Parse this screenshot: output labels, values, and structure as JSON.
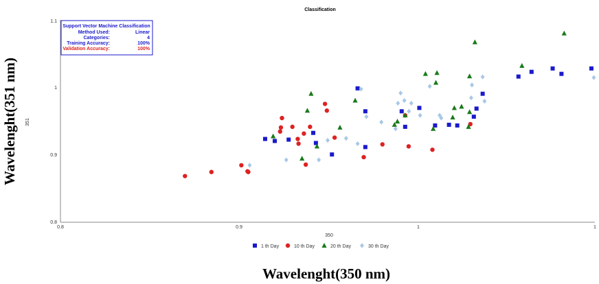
{
  "chart_data": {
    "type": "scatter",
    "title": "Classification",
    "xlabel": "350",
    "ylabel": "351",
    "outer_xlabel": "Wavelenght(350 nm)",
    "outer_ylabel": "Wavelenght(351 nm)",
    "xlim": [
      0.8,
      1.0
    ],
    "ylim": [
      0.8,
      1.1
    ],
    "x_ticks": [
      "0.8",
      "0.9",
      "1",
      "1"
    ],
    "y_ticks": [
      "0.8",
      "0.9",
      "1",
      "1.1"
    ],
    "grid": false,
    "legend_position": "bottom",
    "info_box": {
      "title": "Support Vector Machine Classification",
      "rows": [
        {
          "label": "Method Used:",
          "value": "Linear"
        },
        {
          "label": "Categories:",
          "value": "4"
        },
        {
          "label": "Training Accuracy:",
          "value": "100%"
        },
        {
          "label": "Validation Accuracy:",
          "value": "100%"
        }
      ]
    },
    "series": [
      {
        "name": "1 th Day",
        "marker": "square",
        "color": "#1a1acc",
        "points": [
          [
            0.8766,
            0.9235
          ],
          [
            0.8802,
            0.9205
          ],
          [
            0.8854,
            0.9225
          ],
          [
            0.8946,
            0.9325
          ],
          [
            0.8956,
            0.9175
          ],
          [
            0.9016,
            0.9005
          ],
          [
            0.9112,
            0.9985
          ],
          [
            0.9141,
            0.9645
          ],
          [
            0.9141,
            0.9115
          ],
          [
            0.9277,
            0.9645
          ],
          [
            0.929,
            0.9415
          ],
          [
            0.9343,
            0.9695
          ],
          [
            0.9402,
            0.9435
          ],
          [
            0.9454,
            0.9445
          ],
          [
            0.9485,
            0.9435
          ],
          [
            0.9547,
            0.9565
          ],
          [
            0.9557,
            0.9685
          ],
          [
            0.958,
            0.9905
          ],
          [
            0.9714,
            1.016
          ],
          [
            0.9763,
            1.023
          ],
          [
            0.9842,
            1.028
          ],
          [
            0.9875,
            1.02
          ],
          [
            0.9987,
            1.028
          ]
        ]
      },
      {
        "name": "10 th Day",
        "marker": "circle",
        "color": "#dd2222",
        "points": [
          [
            0.8466,
            0.8685
          ],
          [
            0.8565,
            0.8745
          ],
          [
            0.8677,
            0.8845
          ],
          [
            0.87,
            0.8755
          ],
          [
            0.8703,
            0.8745
          ],
          [
            0.8822,
            0.9345
          ],
          [
            0.8825,
            0.9405
          ],
          [
            0.8829,
            0.9545
          ],
          [
            0.8868,
            0.9415
          ],
          [
            0.8888,
            0.9235
          ],
          [
            0.8891,
            0.9165
          ],
          [
            0.8911,
            0.9315
          ],
          [
            0.8918,
            0.8855
          ],
          [
            0.8934,
            0.9415
          ],
          [
            0.899,
            0.9755
          ],
          [
            0.8997,
            0.9655
          ],
          [
            0.9026,
            0.9255
          ],
          [
            0.9135,
            0.8965
          ],
          [
            0.9205,
            0.9155
          ],
          [
            0.929,
            0.9585
          ],
          [
            0.9303,
            0.9125
          ],
          [
            0.9392,
            0.9075
          ],
          [
            0.9534,
            0.9455
          ]
        ]
      },
      {
        "name": "20 th Day",
        "marker": "triangle",
        "color": "#1a7a1a",
        "points": [
          [
            0.8796,
            0.9275
          ],
          [
            0.8904,
            0.8945
          ],
          [
            0.8924,
            0.9655
          ],
          [
            0.8938,
            0.9905
          ],
          [
            0.896,
            0.9125
          ],
          [
            0.9046,
            0.9405
          ],
          [
            0.9103,
            0.9805
          ],
          [
            0.925,
            0.9445
          ],
          [
            0.9261,
            0.9495
          ],
          [
            0.929,
            0.9585
          ],
          [
            0.9366,
            1.02
          ],
          [
            0.9395,
            0.9385
          ],
          [
            0.9405,
            1.007
          ],
          [
            0.9409,
            1.0215
          ],
          [
            0.9468,
            0.9555
          ],
          [
            0.9474,
            0.9695
          ],
          [
            0.9501,
            0.9715
          ],
          [
            0.9527,
            0.9415
          ],
          [
            0.9531,
            1.0165
          ],
          [
            0.9531,
            0.9635
          ],
          [
            0.9551,
            1.067
          ],
          [
            0.9727,
            1.032
          ],
          [
            0.9885,
            1.08
          ]
        ]
      },
      {
        "name": "30 th Day",
        "marker": "diamond",
        "color": "#a8c8e6",
        "points": [
          [
            0.8708,
            0.8845
          ],
          [
            0.8845,
            0.8925
          ],
          [
            0.8967,
            0.8925
          ],
          [
            0.9069,
            0.9245
          ],
          [
            0.9,
            0.9215
          ],
          [
            0.9112,
            0.9165
          ],
          [
            0.9145,
            0.9565
          ],
          [
            0.9125,
            0.9975
          ],
          [
            0.9201,
            0.9485
          ],
          [
            0.9254,
            0.9385
          ],
          [
            0.9263,
            0.9765
          ],
          [
            0.9287,
            0.9805
          ],
          [
            0.9273,
            0.9915
          ],
          [
            0.9304,
            0.9645
          ],
          [
            0.9313,
            0.9765
          ],
          [
            0.9346,
            0.9585
          ],
          [
            0.9382,
            1.0015
          ],
          [
            0.9419,
            0.9585
          ],
          [
            0.9425,
            0.9545
          ],
          [
            0.954,
            1.0035
          ],
          [
            0.9537,
            0.9845
          ],
          [
            0.9587,
            0.9795
          ],
          [
            0.958,
            1.0155
          ],
          [
            0.9996,
            1.0145
          ]
        ]
      }
    ]
  }
}
